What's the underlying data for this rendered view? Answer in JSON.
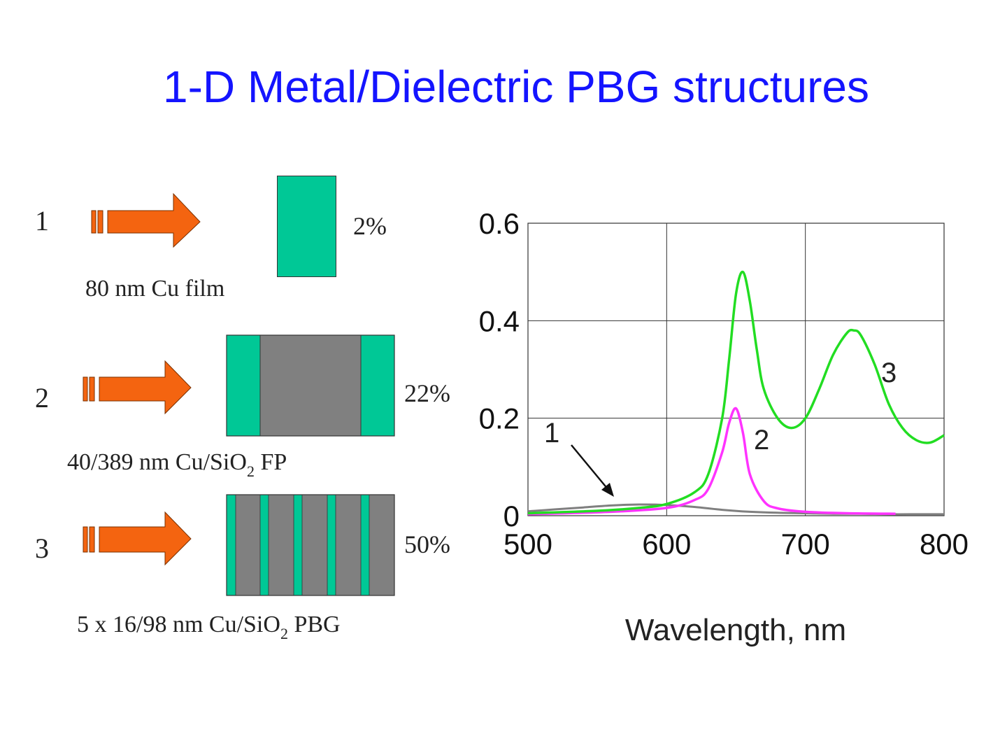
{
  "title": "1-D Metal/Dielectric PBG structures",
  "structures": [
    {
      "number": "1",
      "percent": "2%",
      "caption_pre": "80 nm Cu film",
      "caption_sub": "",
      "caption_post": ""
    },
    {
      "number": "2",
      "percent": "22%",
      "caption_pre": "40/389 nm Cu/SiO",
      "caption_sub": "2",
      "caption_post": " FP"
    },
    {
      "number": "3",
      "percent": "50%",
      "caption_pre": "5 x 16/98 nm Cu/SiO",
      "caption_sub": "2",
      "caption_post": " PBG"
    }
  ],
  "colors": {
    "title": "#1414ff",
    "arrow": "#f46410",
    "metal": "#00c896",
    "dielectric": "#808080",
    "curve1": "#7f7f7f",
    "curve2": "#ff33ff",
    "curve3": "#22dd22"
  },
  "chart_data": {
    "type": "line",
    "xlabel": "Wavelength, nm",
    "ylabel": "",
    "xlim": [
      500,
      800
    ],
    "ylim": [
      0,
      0.6
    ],
    "xticks": [
      "500",
      "600",
      "700",
      "800"
    ],
    "yticks": [
      "0",
      "0.2",
      "0.4",
      "0.6"
    ],
    "grid": true,
    "curve_labels": [
      "1",
      "2",
      "3"
    ],
    "series": [
      {
        "name": "1",
        "x": [
          500,
          520,
          540,
          560,
          580,
          600,
          620,
          640,
          660,
          680,
          700,
          720,
          740,
          760,
          780,
          800
        ],
        "y": [
          0.009,
          0.013,
          0.017,
          0.021,
          0.023,
          0.022,
          0.018,
          0.012,
          0.008,
          0.006,
          0.005,
          0.004,
          0.004,
          0.003,
          0.003,
          0.003
        ]
      },
      {
        "name": "2",
        "x": [
          500,
          560,
          600,
          620,
          630,
          640,
          645,
          650,
          655,
          660,
          670,
          680,
          700,
          730,
          765
        ],
        "y": [
          0.003,
          0.008,
          0.016,
          0.032,
          0.055,
          0.13,
          0.19,
          0.22,
          0.17,
          0.085,
          0.03,
          0.015,
          0.008,
          0.005,
          0.004
        ]
      },
      {
        "name": "3",
        "x": [
          500,
          550,
          580,
          600,
          620,
          630,
          640,
          645,
          650,
          655,
          660,
          665,
          670,
          680,
          690,
          700,
          710,
          720,
          730,
          735,
          740,
          750,
          760,
          770,
          780,
          790,
          800
        ],
        "y": [
          0.005,
          0.01,
          0.016,
          0.024,
          0.048,
          0.085,
          0.2,
          0.32,
          0.455,
          0.5,
          0.44,
          0.34,
          0.26,
          0.2,
          0.18,
          0.2,
          0.26,
          0.33,
          0.375,
          0.38,
          0.37,
          0.31,
          0.23,
          0.18,
          0.155,
          0.15,
          0.165
        ]
      }
    ]
  }
}
